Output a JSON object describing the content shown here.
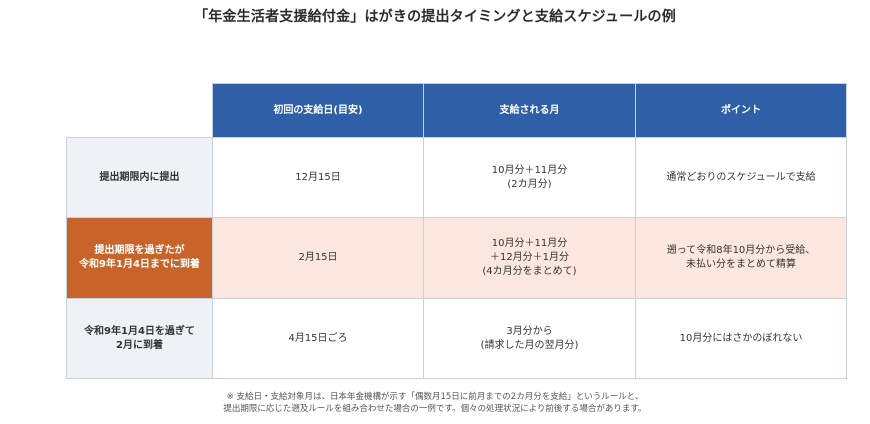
{
  "title": "「年金生活者支援給付金」はがきの提出タイミングと支給スケジュールの例",
  "table": {
    "headers": [
      "初回の支給日(目安)",
      "支給される月",
      "ポイント"
    ],
    "rows": [
      {
        "label": "提出期限内に提出",
        "first_payment": "12月15日",
        "months": "10月分＋11月分\n(2カ月分)",
        "point": "通常どおりのスケジュールで支給"
      },
      {
        "label": "提出期限を過ぎたが\n令和9年1月4日までに到着",
        "first_payment": "2月15日",
        "months": "10月分＋11月分\n＋12月分＋1月分\n(4カ月分をまとめて)",
        "point": "遡って令和8年10月分から受給、\n未払い分をまとめて精算"
      },
      {
        "label": "令和9年1月4日を過ぎて\n2月に到着",
        "first_payment": "4月15日ごろ",
        "months": "3月分から\n(請求した月の翌月分)",
        "point": "10月分にはさかのぼれない"
      }
    ]
  },
  "footnote": "※ 支給日・支給対象月は、日本年金機構が示す「偶数月15日に前月までの2カ月分を支給」というルールと、\n提出期限に応じた遡及ルールを組み合わせた場合の一例です。個々の処理状況により前後する場合があります。",
  "colors": {
    "header_blue": "#2f5fa7",
    "highlight_orange": "#c8642a",
    "highlight_row_bg": "#fbe7dd",
    "row_header_bg": "#eef2f7"
  }
}
